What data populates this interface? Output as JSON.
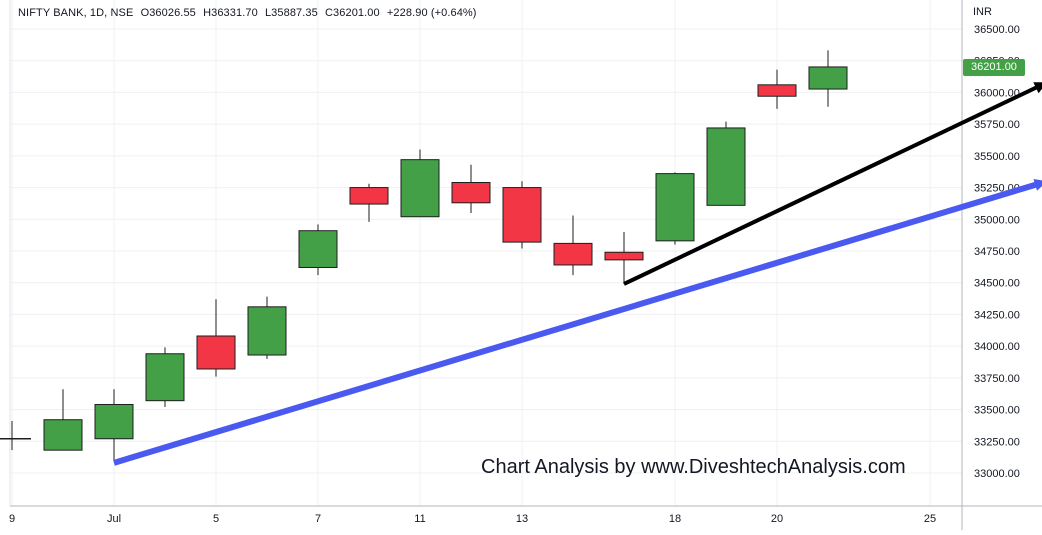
{
  "header": {
    "symbol": "NIFTY BANK, 1D, NSE",
    "open": "O36026.55",
    "high": "H36331.70",
    "low": "L35887.35",
    "close": "C36201.00",
    "change": "+228.90 (+0.64%)"
  },
  "currency": "INR",
  "last_price_label": "36201.00",
  "watermark": "Chart Analysis by www.DiveshtechAnalysis.com",
  "colors": {
    "up": "#43a047",
    "down": "#f23645",
    "blue_trendline": "#4a5af0",
    "black_trendline": "#000000",
    "grid": "#eef0f4",
    "axis_text": "#131722"
  },
  "chart_data": {
    "type": "candlestick",
    "y_axis": {
      "range": [
        32800,
        36600
      ],
      "ticks": [
        "36500.00",
        "36250.00",
        "36000.00",
        "35750.00",
        "35500.00",
        "35250.00",
        "35000.00",
        "34750.00",
        "34500.00",
        "34250.00",
        "34000.00",
        "33750.00",
        "33500.00",
        "33250.00",
        "33000.00"
      ]
    },
    "x_axis": {
      "tick_labels": [
        {
          "label": "9",
          "index": -1
        },
        {
          "label": "Jul",
          "index": 1
        },
        {
          "label": "5",
          "index": 3
        },
        {
          "label": "7",
          "index": 5
        },
        {
          "label": "11",
          "index": 7
        },
        {
          "label": "13",
          "index": 9
        },
        {
          "label": "18",
          "index": 12
        },
        {
          "label": "20",
          "index": 14
        },
        {
          "label": "25",
          "index": 17
        }
      ]
    },
    "candles": [
      {
        "index": -1,
        "open": 33270,
        "high": 33410,
        "low": 33180,
        "close": 33270
      },
      {
        "index": 0,
        "open": 33180,
        "high": 33660,
        "low": 33180,
        "close": 33420
      },
      {
        "index": 1,
        "open": 33270,
        "high": 33660,
        "low": 33090,
        "close": 33540
      },
      {
        "index": 2,
        "open": 33570,
        "high": 33990,
        "low": 33520,
        "close": 33940
      },
      {
        "index": 3,
        "open": 34080,
        "high": 34370,
        "low": 33760,
        "close": 33820
      },
      {
        "index": 4,
        "open": 33930,
        "high": 34390,
        "low": 33900,
        "close": 34310
      },
      {
        "index": 5,
        "open": 34620,
        "high": 34960,
        "low": 34560,
        "close": 34910
      },
      {
        "index": 6,
        "open": 35250,
        "high": 35280,
        "low": 34980,
        "close": 35120
      },
      {
        "index": 7,
        "open": 35020,
        "high": 35550,
        "low": 35020,
        "close": 35470
      },
      {
        "index": 8,
        "open": 35290,
        "high": 35430,
        "low": 35050,
        "close": 35130
      },
      {
        "index": 9,
        "open": 35250,
        "high": 35300,
        "low": 34770,
        "close": 34820
      },
      {
        "index": 10,
        "open": 34810,
        "high": 35030,
        "low": 34560,
        "close": 34640
      },
      {
        "index": 11,
        "open": 34740,
        "high": 34900,
        "low": 34490,
        "close": 34680
      },
      {
        "index": 12,
        "open": 34830,
        "high": 35370,
        "low": 34800,
        "close": 35360
      },
      {
        "index": 13,
        "open": 35110,
        "high": 35770,
        "low": 35110,
        "close": 35720
      },
      {
        "index": 14,
        "open": 36060,
        "high": 36180,
        "low": 35870,
        "close": 35970
      },
      {
        "index": 15,
        "open": 36026.55,
        "high": 36331.7,
        "low": 35887.35,
        "close": 36201.0
      }
    ],
    "trendlines": [
      {
        "name": "blue",
        "from": {
          "index": 1,
          "price": 33080
        },
        "to": {
          "index": 19.3,
          "price": 35300
        }
      },
      {
        "name": "black",
        "from": {
          "index": 11,
          "price": 34490
        },
        "to": {
          "index": 19.3,
          "price": 36080
        }
      }
    ]
  }
}
